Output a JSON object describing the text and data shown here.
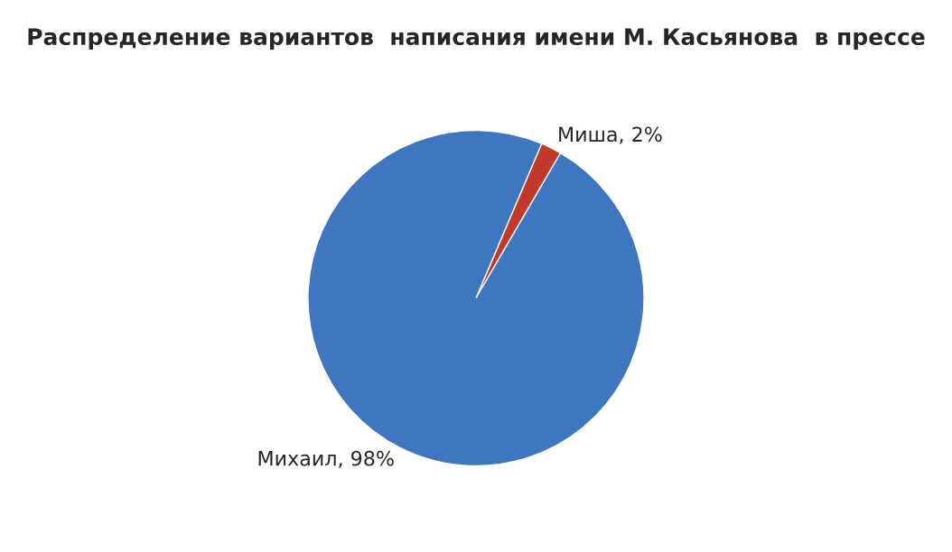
{
  "chart_data": {
    "type": "pie",
    "title": "Распределение вариантов  написания имени М. Касьянова  в прессе",
    "categories": [
      "Миша",
      "Михаил"
    ],
    "values": [
      2,
      98
    ],
    "value_labels": [
      ", 2%",
      ", 98%"
    ],
    "colors": [
      "#c0392b",
      "#3f76c0"
    ],
    "legend": false
  }
}
